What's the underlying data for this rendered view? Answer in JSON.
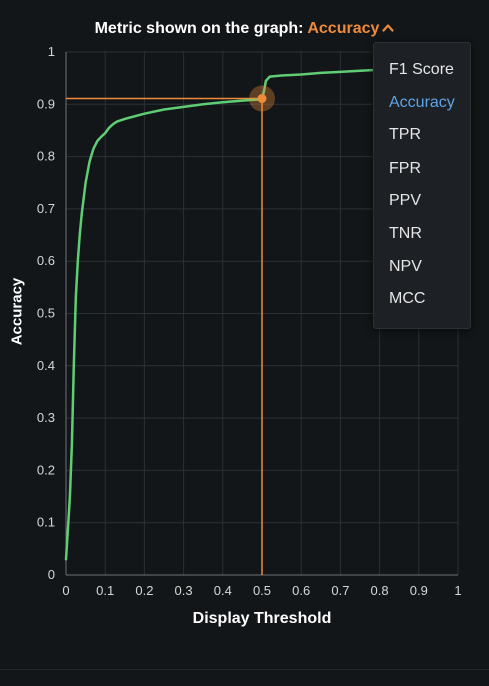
{
  "header": {
    "prefix": "Metric shown on the graph:",
    "selected_metric": "Accuracy"
  },
  "dropdown": {
    "options": [
      "F1 Score",
      "Accuracy",
      "TPR",
      "FPR",
      "PPV",
      "TNR",
      "NPV",
      "MCC"
    ],
    "selected": "Accuracy"
  },
  "colors": {
    "curve": "#5fcd74",
    "threshold_marker": "#ee8b3a",
    "active_option": "#5ea3e6",
    "grid": "#2c3035"
  },
  "chart_data": {
    "type": "line",
    "xlabel": "Display Threshold",
    "ylabel": "Accuracy",
    "xlim": [
      0,
      1
    ],
    "ylim": [
      0,
      1
    ],
    "xticks": [
      "0",
      "0.1",
      "0.2",
      "0.3",
      "0.4",
      "0.5",
      "0.6",
      "0.7",
      "0.8",
      "0.9",
      "1"
    ],
    "yticks": [
      "0",
      "0.1",
      "0.2",
      "0.3",
      "0.4",
      "0.5",
      "0.6",
      "0.7",
      "0.8",
      "0.9",
      "1"
    ],
    "grid": true,
    "series": [
      {
        "x": [
          0.0,
          0.005,
          0.01,
          0.015,
          0.02,
          0.025,
          0.03,
          0.035,
          0.04,
          0.05,
          0.06,
          0.07,
          0.08,
          0.09,
          0.1,
          0.11,
          0.12,
          0.13,
          0.15,
          0.2,
          0.25,
          0.3,
          0.35,
          0.4,
          0.45,
          0.49,
          0.5,
          0.505,
          0.51,
          0.52,
          0.55,
          0.6,
          0.65,
          0.7,
          0.75,
          0.8,
          0.85,
          0.9
        ],
        "y": [
          0.03,
          0.09,
          0.15,
          0.25,
          0.4,
          0.53,
          0.6,
          0.65,
          0.69,
          0.75,
          0.79,
          0.815,
          0.83,
          0.838,
          0.845,
          0.855,
          0.862,
          0.867,
          0.872,
          0.882,
          0.89,
          0.895,
          0.9,
          0.904,
          0.907,
          0.909,
          0.911,
          0.925,
          0.945,
          0.953,
          0.955,
          0.957,
          0.96,
          0.962,
          0.964,
          0.966,
          0.967,
          0.968
        ]
      }
    ],
    "threshold": {
      "x": 0.5,
      "y": 0.911
    }
  }
}
